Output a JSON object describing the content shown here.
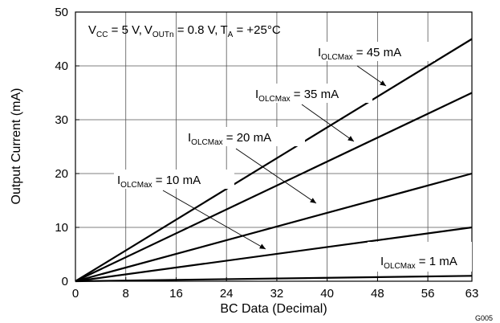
{
  "chart_data": {
    "type": "line",
    "title": "",
    "conditions": {
      "vcc_main": "V",
      "vcc_sub": "CC",
      "vcc_val": " = 5 V,",
      "vout_main": "V",
      "vout_sub": "OUTn",
      "vout_val": " = 0.8 V,",
      "ta_main": "T",
      "ta_sub": "A",
      "ta_val": " = +25°C"
    },
    "xlabel": "BC Data (Decimal)",
    "ylabel": "Output Current (mA)",
    "xlim": [
      0,
      63
    ],
    "ylim": [
      0,
      50
    ],
    "x_ticks": [
      "0",
      "8",
      "16",
      "24",
      "32",
      "40",
      "48",
      "56",
      "63"
    ],
    "y_ticks": [
      "0",
      "10",
      "20",
      "30",
      "40",
      "50"
    ],
    "grid": true,
    "figure_id": "G005",
    "series": [
      {
        "name": "IOLCMax = 45 mA",
        "label_main": "I",
        "label_sub": "OLCMax",
        "label_val": " = 45 mA",
        "x": [
          0,
          63
        ],
        "y": [
          0,
          45
        ]
      },
      {
        "name": "IOLCMax = 35 mA",
        "label_main": "I",
        "label_sub": "OLCMax",
        "label_val": " = 35 mA",
        "x": [
          0,
          63
        ],
        "y": [
          0,
          35
        ]
      },
      {
        "name": "IOLCMax = 20 mA",
        "label_main": "I",
        "label_sub": "OLCMax",
        "label_val": " = 20 mA",
        "x": [
          0,
          63
        ],
        "y": [
          0,
          20
        ]
      },
      {
        "name": "IOLCMax = 10 mA",
        "label_main": "I",
        "label_sub": "OLCMax",
        "label_val": " = 10 mA",
        "x": [
          0,
          63
        ],
        "y": [
          0,
          10
        ]
      },
      {
        "name": "IOLCMax = 1 mA",
        "label_main": "I",
        "label_sub": "OLCMax",
        "label_val": " = 1 mA",
        "x": [
          0,
          63
        ],
        "y": [
          0,
          1
        ]
      }
    ]
  }
}
